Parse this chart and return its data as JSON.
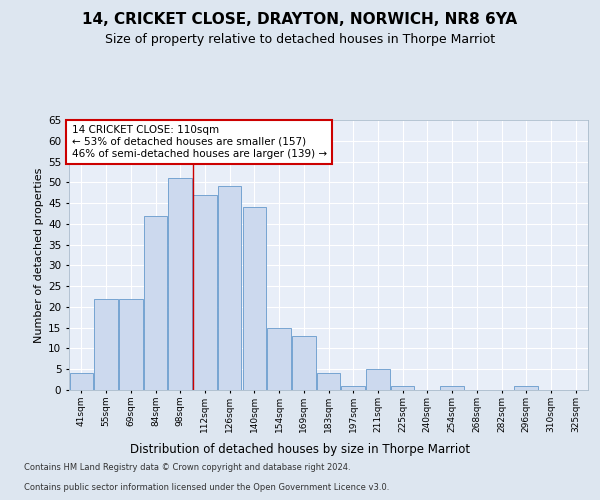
{
  "title1": "14, CRICKET CLOSE, DRAYTON, NORWICH, NR8 6YA",
  "title2": "Size of property relative to detached houses in Thorpe Marriot",
  "xlabel": "Distribution of detached houses by size in Thorpe Marriot",
  "ylabel": "Number of detached properties",
  "categories": [
    "41sqm",
    "55sqm",
    "69sqm",
    "84sqm",
    "98sqm",
    "112sqm",
    "126sqm",
    "140sqm",
    "154sqm",
    "169sqm",
    "183sqm",
    "197sqm",
    "211sqm",
    "225sqm",
    "240sqm",
    "254sqm",
    "268sqm",
    "282sqm",
    "296sqm",
    "310sqm",
    "325sqm"
  ],
  "values": [
    4,
    22,
    22,
    42,
    51,
    47,
    49,
    44,
    15,
    13,
    4,
    1,
    5,
    1,
    0,
    1,
    0,
    0,
    1,
    0,
    0
  ],
  "bar_color": "#ccd9ee",
  "bar_edge_color": "#6699cc",
  "vline_x": 5,
  "annotation_text": "14 CRICKET CLOSE: 110sqm\n← 53% of detached houses are smaller (157)\n46% of semi-detached houses are larger (139) →",
  "annotation_box_color": "#ffffff",
  "annotation_box_edge_color": "#cc0000",
  "ylim": [
    0,
    65
  ],
  "yticks": [
    0,
    5,
    10,
    15,
    20,
    25,
    30,
    35,
    40,
    45,
    50,
    55,
    60,
    65
  ],
  "bg_color": "#dde6f0",
  "plot_bg_color": "#e8eef8",
  "footnote1": "Contains HM Land Registry data © Crown copyright and database right 2024.",
  "footnote2": "Contains public sector information licensed under the Open Government Licence v3.0.",
  "title1_fontsize": 11,
  "title2_fontsize": 9,
  "xlabel_fontsize": 8.5,
  "ylabel_fontsize": 8
}
